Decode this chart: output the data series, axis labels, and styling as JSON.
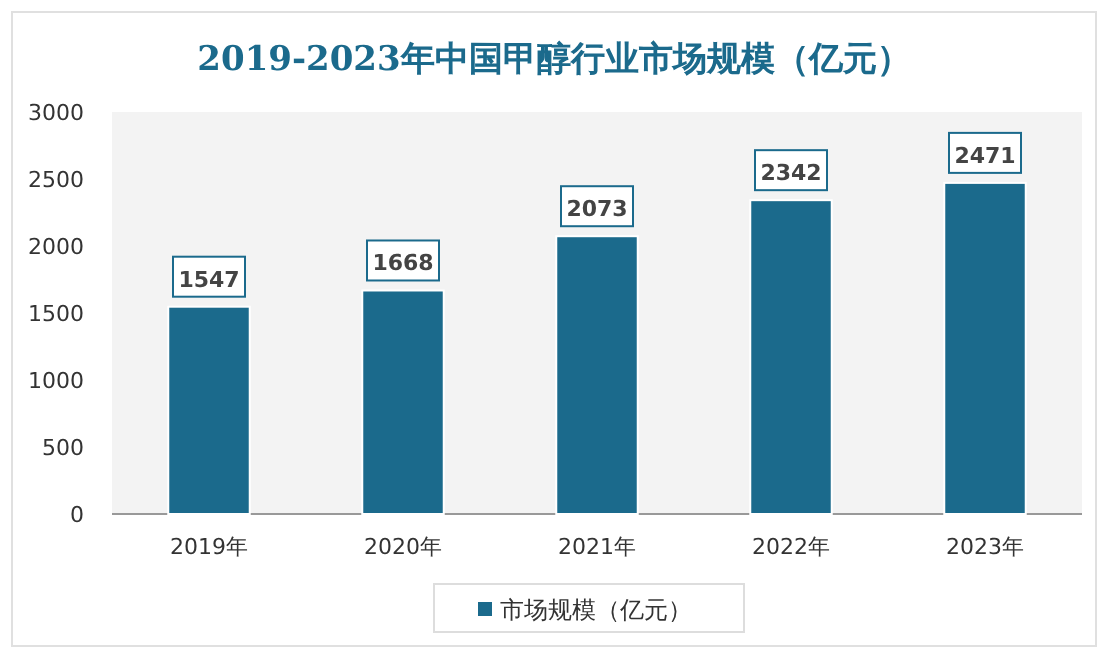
{
  "chart_data": {
    "type": "bar",
    "title": "2019-2023年中国甲醇行业市场规模（亿元）",
    "categories": [
      "2019年",
      "2020年",
      "2021年",
      "2022年",
      "2023年"
    ],
    "series": [
      {
        "name": "市场规模（亿元）",
        "color": "#1b6a8c",
        "values": [
          1547,
          1668,
          2073,
          2342,
          2471
        ]
      }
    ],
    "ylim": [
      0,
      3000
    ],
    "yticks": [
      0,
      500,
      1000,
      1500,
      2000,
      2500,
      3000
    ],
    "data_labels": true,
    "legend": "bottom",
    "grid": false
  }
}
